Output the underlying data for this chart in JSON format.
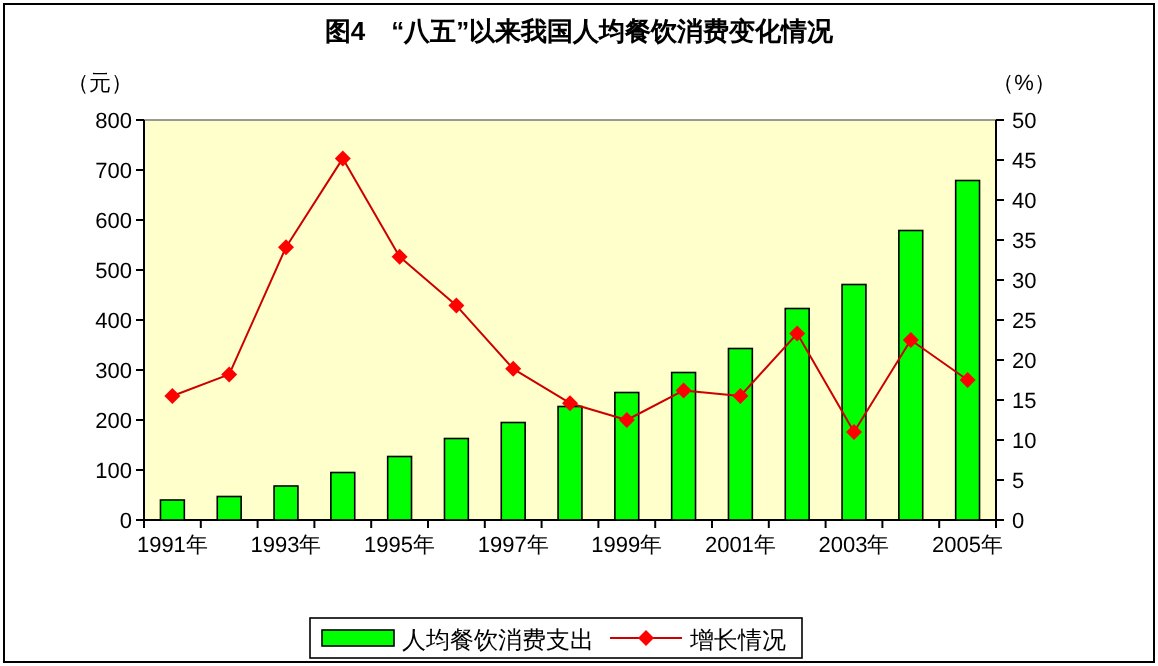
{
  "chart_data": {
    "type": "bar",
    "title": "图4　“八五”以来我国人均餐饮消费变化情况",
    "ylabel": "（元）",
    "y2label": "（%）",
    "categories": [
      "1991年",
      null,
      "1993年",
      null,
      "1995年",
      null,
      "1997年",
      null,
      "1999年",
      null,
      "2001年",
      null,
      "2003年",
      null,
      "2005年"
    ],
    "series": [
      {
        "name": "人均餐饮消费支出",
        "color": "#00ff00",
        "values": [
          40,
          47,
          68,
          95,
          127,
          163,
          195,
          227,
          255,
          295,
          343,
          423,
          471,
          579,
          679
        ]
      },
      {
        "name": "增长情况",
        "type": "line",
        "axis": "y2",
        "color": "#cc0000",
        "marker": "diamond",
        "values": [
          15.5,
          18.2,
          34.1,
          45.2,
          32.9,
          26.8,
          18.9,
          14.6,
          12.5,
          16.2,
          15.5,
          23.3,
          11,
          22.5,
          17.5
        ]
      }
    ],
    "ylim": [
      0,
      800
    ],
    "yticks": [
      0,
      100,
      200,
      300,
      400,
      500,
      600,
      700,
      800
    ],
    "y2lim": [
      0,
      50
    ],
    "y2ticks": [
      0,
      5,
      10,
      15,
      20,
      25,
      30,
      35,
      40,
      45,
      50
    ],
    "grid": false,
    "legend": "bottom"
  }
}
